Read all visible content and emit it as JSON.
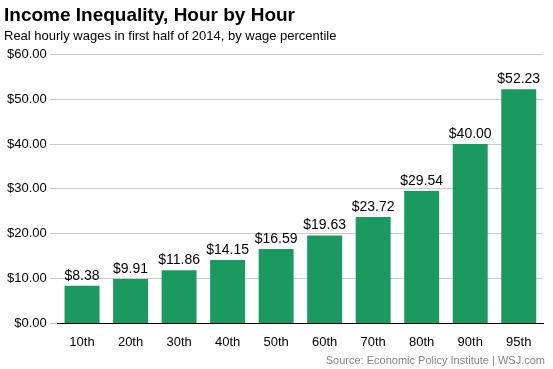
{
  "chart_data": {
    "type": "bar",
    "title": "Income Inequality, Hour by Hour",
    "subtitle": "Real hourly wages in first half of 2014, by wage percentile",
    "annotations": [
      "Source: Economic Policy Institute | WSJ.com"
    ],
    "categories": [
      "10th",
      "20th",
      "30th",
      "40th",
      "50th",
      "60th",
      "70th",
      "80th",
      "90th",
      "95th"
    ],
    "values": [
      8.38,
      9.91,
      11.86,
      14.15,
      16.59,
      19.63,
      23.72,
      29.54,
      40.0,
      52.23
    ],
    "value_labels": [
      "$8.38",
      "$9.91",
      "$11.86",
      "$14.15",
      "$16.59",
      "$19.63",
      "$23.72",
      "$29.54",
      "$40.00",
      "$52.23"
    ],
    "color": "#1a9a5e",
    "ylim": [
      0,
      60
    ],
    "yticks": [
      {
        "value": 0,
        "label": "$0.00"
      },
      {
        "value": 10,
        "label": "$10.00"
      },
      {
        "value": 20,
        "label": "$20.00"
      },
      {
        "value": 30,
        "label": "$30.00"
      },
      {
        "value": 40,
        "label": "$40.00"
      },
      {
        "value": 50,
        "label": "$50.00"
      },
      {
        "value": 60,
        "label": "$60.00"
      }
    ],
    "grid": true,
    "data_labels": true
  }
}
